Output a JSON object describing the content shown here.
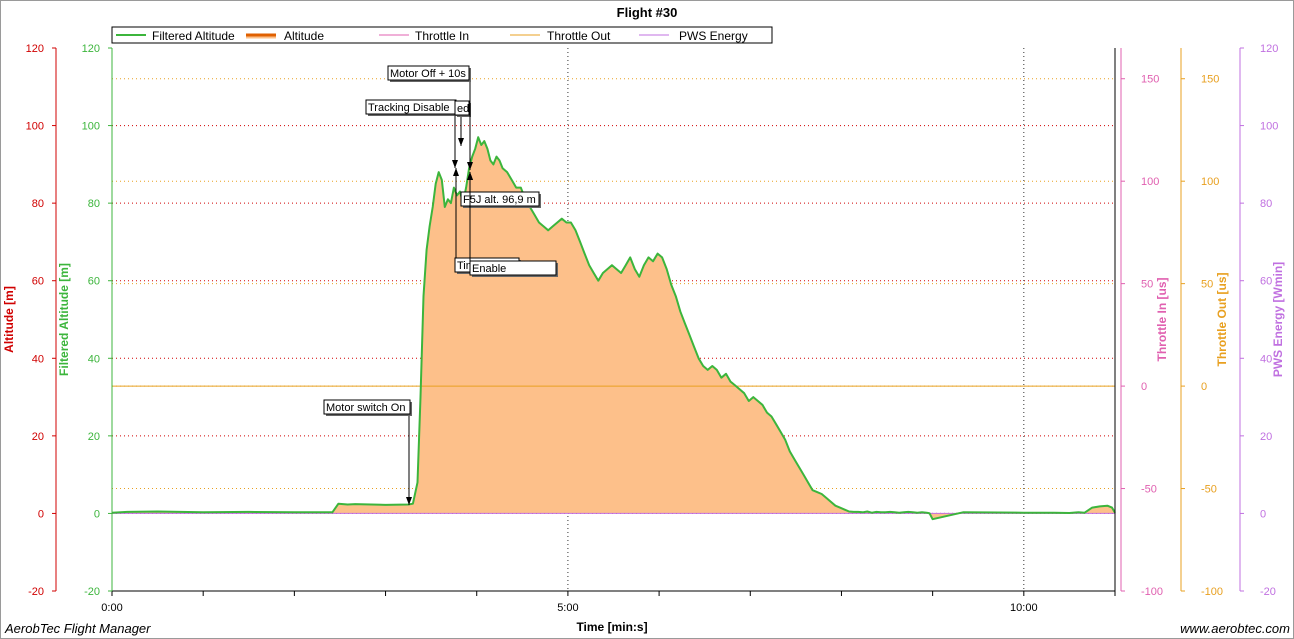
{
  "app": {
    "footer_left": "AerobTec Flight Manager",
    "footer_right": "www.aerobtec.com"
  },
  "chart_data": {
    "type": "area",
    "title": "Flight #30",
    "xlabel": "Time [min:s]",
    "x_unit": "seconds",
    "xlim": [
      0,
      660
    ],
    "x_ticks": [
      {
        "value": 0,
        "label": "0:00"
      },
      {
        "value": 300,
        "label": "5:00"
      },
      {
        "value": 600,
        "label": "10:00"
      }
    ],
    "legend": {
      "position": "top",
      "entries": [
        {
          "name": "Filtered Altitude",
          "color": "#3cb53c"
        },
        {
          "name": "Altitude",
          "color": "#e06000"
        },
        {
          "name": "Throttle In",
          "color": "#e060b0"
        },
        {
          "name": "Throttle Out",
          "color": "#e8a020"
        },
        {
          "name": "PWS Energy",
          "color": "#c070e0"
        }
      ]
    },
    "axes": [
      {
        "id": "altitude",
        "label": "Altitude [m]",
        "color": "#d00000",
        "side": "left",
        "min": -20,
        "max": 120,
        "ticks": [
          -20,
          0,
          20,
          40,
          60,
          80,
          100,
          120
        ]
      },
      {
        "id": "filtered_altitude",
        "label": "Filtered Altitude [m]",
        "color": "#3cb53c",
        "side": "left",
        "min": -20,
        "max": 120,
        "ticks": [
          -20,
          0,
          20,
          40,
          60,
          80,
          100,
          120
        ]
      },
      {
        "id": "throttle_in",
        "label": "Throttle In [us]",
        "color": "#e060b0",
        "side": "right",
        "min": -100,
        "max": 165,
        "ticks": [
          -100,
          -50,
          0,
          50,
          100,
          150
        ]
      },
      {
        "id": "throttle_out",
        "label": "Throttle Out [us]",
        "color": "#e8a020",
        "side": "right",
        "min": -100,
        "max": 165,
        "ticks": [
          -100,
          -50,
          0,
          50,
          100,
          150
        ]
      },
      {
        "id": "pws_energy",
        "label": "PWS Energy [Wmin]",
        "color": "#c070e0",
        "side": "right",
        "min": -20,
        "max": 120,
        "ticks": [
          -20,
          0,
          20,
          40,
          60,
          80,
          100,
          120
        ]
      }
    ],
    "grid": true,
    "series": [
      {
        "name": "Filtered Altitude",
        "axis": "filtered_altitude",
        "x": [
          0,
          10,
          30,
          60,
          90,
          120,
          145,
          149,
          155,
          160,
          180,
          195,
          198,
          201,
          203,
          205,
          207,
          209,
          211,
          213,
          215,
          217,
          219,
          221,
          223,
          225,
          227,
          229,
          231,
          233,
          235,
          237,
          239,
          241,
          243,
          245,
          247,
          249,
          251,
          253,
          255,
          257,
          260,
          263,
          266,
          269,
          272,
          275,
          278,
          281,
          284,
          287,
          290,
          293,
          296,
          299,
          302,
          305,
          308,
          311,
          314,
          317,
          320,
          323,
          326,
          329,
          332,
          335,
          338,
          341,
          344,
          347,
          350,
          353,
          356,
          359,
          362,
          365,
          368,
          371,
          374,
          377,
          380,
          383,
          386,
          389,
          392,
          395,
          398,
          401,
          404,
          407,
          410,
          413,
          416,
          419,
          422,
          425,
          428,
          431,
          434,
          437,
          440,
          443,
          446,
          449,
          452,
          455,
          458,
          461,
          464,
          467,
          470,
          473,
          476,
          479,
          482,
          485,
          488,
          491,
          494,
          497,
          500,
          503,
          506,
          509,
          512,
          515,
          518,
          521,
          524,
          527,
          530,
          533,
          536,
          537,
          538,
          540,
          560,
          600,
          620,
          630,
          636,
          640,
          645,
          650,
          655,
          658,
          660
        ],
        "values": [
          0.2,
          0.4,
          0.5,
          0.3,
          0.4,
          0.3,
          0.3,
          2.5,
          2.3,
          2.4,
          2.2,
          2.3,
          2.5,
          8,
          30,
          56,
          68,
          74,
          79,
          85,
          88,
          86,
          79,
          81,
          80,
          84,
          82,
          83,
          80,
          84,
          89,
          92,
          94,
          97,
          95,
          96,
          94,
          91,
          90,
          92,
          91,
          89,
          88,
          86,
          84,
          84,
          81,
          79,
          77,
          75,
          74,
          73,
          74,
          75,
          76,
          75,
          75,
          73,
          70,
          67,
          64,
          62,
          60,
          62,
          63,
          64,
          63,
          62,
          64,
          66,
          63,
          61,
          64,
          66,
          65,
          67,
          66,
          63,
          59,
          56,
          52,
          49,
          46,
          43,
          40,
          38,
          37,
          38,
          37,
          35,
          36,
          34,
          33,
          32,
          31,
          29,
          30,
          29,
          28,
          26,
          25,
          23,
          21,
          19,
          16,
          14,
          12,
          10,
          8,
          6,
          5.5,
          5,
          4,
          3,
          2,
          1.5,
          1,
          0.5,
          0.4,
          0.4,
          0.3,
          0.5,
          0.2,
          0.4,
          0.3,
          0.3,
          0.4,
          0.3,
          0.2,
          0.3,
          0.4,
          0.3,
          0.2,
          0.3,
          0.2,
          0.1,
          0,
          -1.5,
          0.3,
          0.2,
          0.2,
          0.1,
          0.3,
          0.2,
          1.5,
          1.8,
          2,
          1.5,
          0.2
        ]
      },
      {
        "name": "Altitude",
        "axis": "altitude",
        "note": "filled area following the filtered altitude curve"
      },
      {
        "name": "Throttle Out",
        "axis": "throttle_out",
        "x": [
          0,
          660
        ],
        "values": [
          0,
          0
        ]
      },
      {
        "name": "PWS Energy",
        "axis": "pws_energy",
        "x": [
          0,
          660
        ],
        "values": [
          0,
          0
        ]
      }
    ],
    "annotations": [
      {
        "text": "Motor switch On",
        "x": 196,
        "y": 2.5
      },
      {
        "text": "Tracking Disable",
        "x": 227,
        "y": 91
      },
      {
        "text": "ed",
        "x": 233,
        "y": 97
      },
      {
        "text": "Motor Off + 10s",
        "x": 236,
        "y": 90
      },
      {
        "text": "F5J alt. 96,9 m",
        "x": 236,
        "y": 89
      },
      {
        "text": "Time switch",
        "x": 227,
        "y": 89
      },
      {
        "text": "Enable",
        "x": 236,
        "y": 89
      }
    ]
  }
}
